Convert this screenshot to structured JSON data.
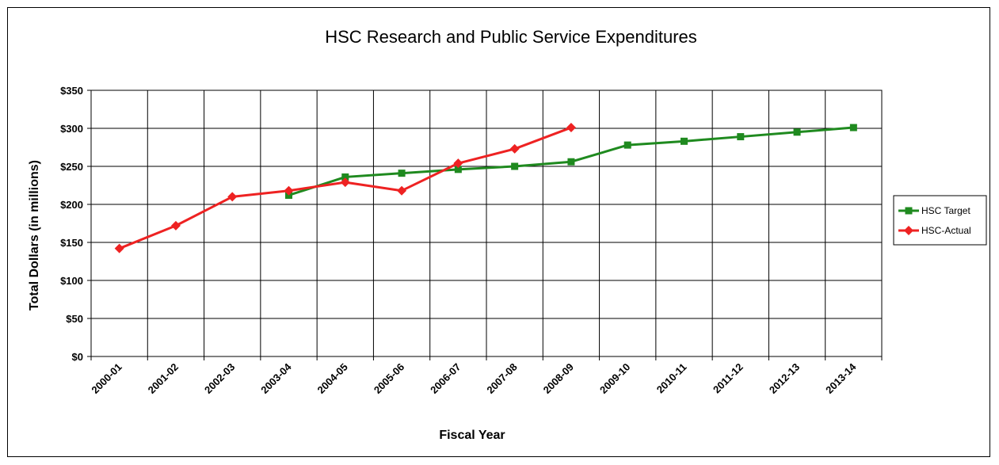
{
  "chart_data": {
    "type": "line",
    "title": "HSC Research and Public Service Expenditures",
    "xlabel": "Fiscal Year",
    "ylabel": "Total Dollars (in millions)",
    "categories": [
      "2000-01",
      "2001-02",
      "2002-03",
      "2003-04",
      "2004-05",
      "2005-06",
      "2006-07",
      "2007-08",
      "2008-09",
      "2009-10",
      "2010-11",
      "2011-12",
      "2012-13",
      "2013-14"
    ],
    "yticks": [
      "$0",
      "$50",
      "$100",
      "$150",
      "$200",
      "$250",
      "$300",
      "$350"
    ],
    "ylim": [
      0,
      350
    ],
    "grid": true,
    "legend_position": "right",
    "series": [
      {
        "name": "HSC Target",
        "color": "#1f8a1f",
        "marker": "square",
        "values": [
          null,
          null,
          null,
          212,
          236,
          241,
          246,
          250,
          256,
          278,
          283,
          289,
          295,
          301
        ]
      },
      {
        "name": "HSC-Actual",
        "color": "#ee2222",
        "marker": "diamond",
        "values": [
          142,
          172,
          210,
          218,
          229,
          218,
          254,
          273,
          301,
          null,
          null,
          null,
          null,
          null
        ]
      }
    ]
  }
}
